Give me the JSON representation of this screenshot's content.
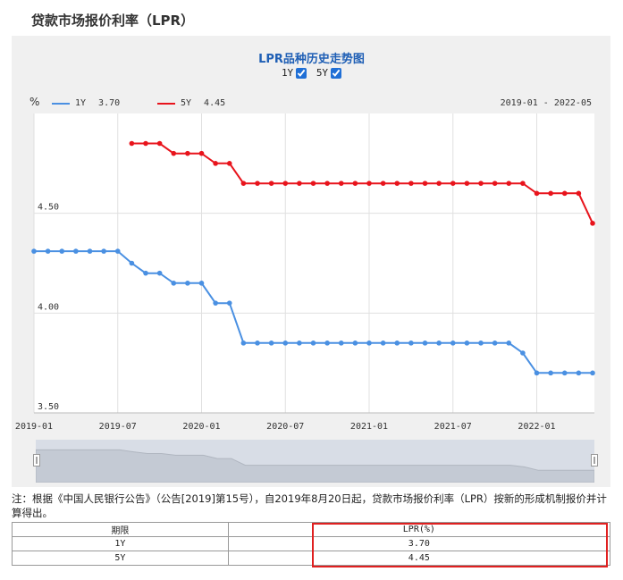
{
  "page": {
    "title": "贷款市场报价利率（LPR）"
  },
  "chart": {
    "title": "LPR品种历史走势图",
    "toggles": [
      {
        "label": "1Y",
        "checked": true
      },
      {
        "label": "5Y",
        "checked": true
      }
    ],
    "unit": "%",
    "range_label": "2019-01 - 2022-05",
    "legend": [
      {
        "name": "1Y",
        "value": "3.70",
        "color": "#4a90e2"
      },
      {
        "name": "5Y",
        "value": "4.45",
        "color": "#e8141c"
      }
    ]
  },
  "chart_data": {
    "type": "line",
    "x": [
      "2019-01",
      "2019-02",
      "2019-03",
      "2019-04",
      "2019-05",
      "2019-06",
      "2019-07",
      "2019-08",
      "2019-09",
      "2019-10",
      "2019-11",
      "2019-12",
      "2020-01",
      "2020-02",
      "2020-03",
      "2020-04",
      "2020-05",
      "2020-06",
      "2020-07",
      "2020-08",
      "2020-09",
      "2020-10",
      "2020-11",
      "2020-12",
      "2021-01",
      "2021-02",
      "2021-03",
      "2021-04",
      "2021-05",
      "2021-06",
      "2021-07",
      "2021-08",
      "2021-09",
      "2021-10",
      "2021-11",
      "2021-12",
      "2022-01",
      "2022-02",
      "2022-03",
      "2022-04",
      "2022-05"
    ],
    "series": [
      {
        "name": "1Y",
        "color": "#4a90e2",
        "values": [
          4.31,
          4.31,
          4.31,
          4.31,
          4.31,
          4.31,
          4.31,
          4.25,
          4.2,
          4.2,
          4.15,
          4.15,
          4.15,
          4.05,
          4.05,
          3.85,
          3.85,
          3.85,
          3.85,
          3.85,
          3.85,
          3.85,
          3.85,
          3.85,
          3.85,
          3.85,
          3.85,
          3.85,
          3.85,
          3.85,
          3.85,
          3.85,
          3.85,
          3.85,
          3.85,
          3.8,
          3.7,
          3.7,
          3.7,
          3.7,
          3.7
        ]
      },
      {
        "name": "5Y",
        "color": "#e8141c",
        "values": [
          null,
          null,
          null,
          null,
          null,
          null,
          null,
          4.85,
          4.85,
          4.85,
          4.8,
          4.8,
          4.8,
          4.75,
          4.75,
          4.65,
          4.65,
          4.65,
          4.65,
          4.65,
          4.65,
          4.65,
          4.65,
          4.65,
          4.65,
          4.65,
          4.65,
          4.65,
          4.65,
          4.65,
          4.65,
          4.65,
          4.65,
          4.65,
          4.65,
          4.65,
          4.6,
          4.6,
          4.6,
          4.6,
          4.45
        ]
      }
    ],
    "ylim": [
      3.5,
      5.0
    ],
    "y_ticks": [
      "3.50",
      "4.00",
      "4.50"
    ],
    "x_ticks": [
      "2019-01",
      "2019-07",
      "2020-01",
      "2020-07",
      "2021-01",
      "2021-07",
      "2022-01"
    ],
    "grid": true,
    "legend_position": "top-left"
  },
  "note": "注：根据《中国人民银行公告》（公告[2019]第15号），自2019年8月20日起，贷款市场报价利率（LPR）按新的形成机制报价并计算得出。",
  "table": {
    "headers": [
      "期限",
      "LPR(%)"
    ],
    "rows": [
      [
        "1Y",
        "3.70"
      ],
      [
        "5Y",
        "4.45"
      ]
    ]
  }
}
